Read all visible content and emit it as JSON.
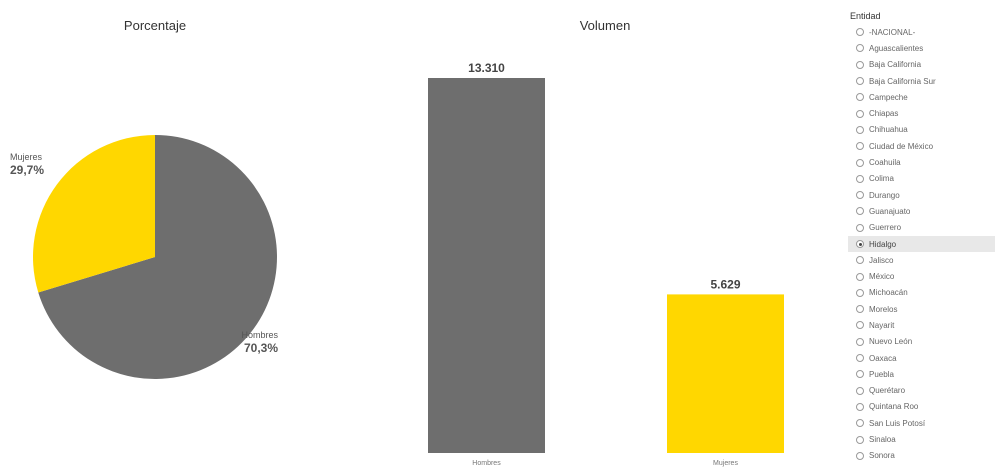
{
  "chart_data": [
    {
      "type": "pie",
      "title": "Porcentaje",
      "slices": [
        {
          "label": "Hombres",
          "value": 70.3,
          "display": "70,3%",
          "color": "#6e6e6e"
        },
        {
          "label": "Mujeres",
          "value": 29.7,
          "display": "29,7%",
          "color": "#ffd700"
        }
      ]
    },
    {
      "type": "bar",
      "title": "Volumen",
      "categories": [
        "Hombres",
        "Mujeres"
      ],
      "values": [
        13310,
        5629
      ],
      "data_labels": [
        "13.310",
        "5.629"
      ],
      "colors": [
        "#6e6e6e",
        "#ffd700"
      ],
      "ylim": [
        0,
        13310
      ]
    }
  ],
  "slicer": {
    "title": "Entidad",
    "items": [
      "-NACIONAL-",
      "Aguascalientes",
      "Baja California",
      "Baja California Sur",
      "Campeche",
      "Chiapas",
      "Chihuahua",
      "Ciudad de México",
      "Coahuila",
      "Colima",
      "Durango",
      "Guanajuato",
      "Guerrero",
      "Hidalgo",
      "Jalisco",
      "México",
      "Michoacán",
      "Morelos",
      "Nayarit",
      "Nuevo León",
      "Oaxaca",
      "Puebla",
      "Querétaro",
      "Quintana Roo",
      "San Luis Potosí",
      "Sinaloa",
      "Sonora"
    ],
    "selected": "Hidalgo"
  }
}
